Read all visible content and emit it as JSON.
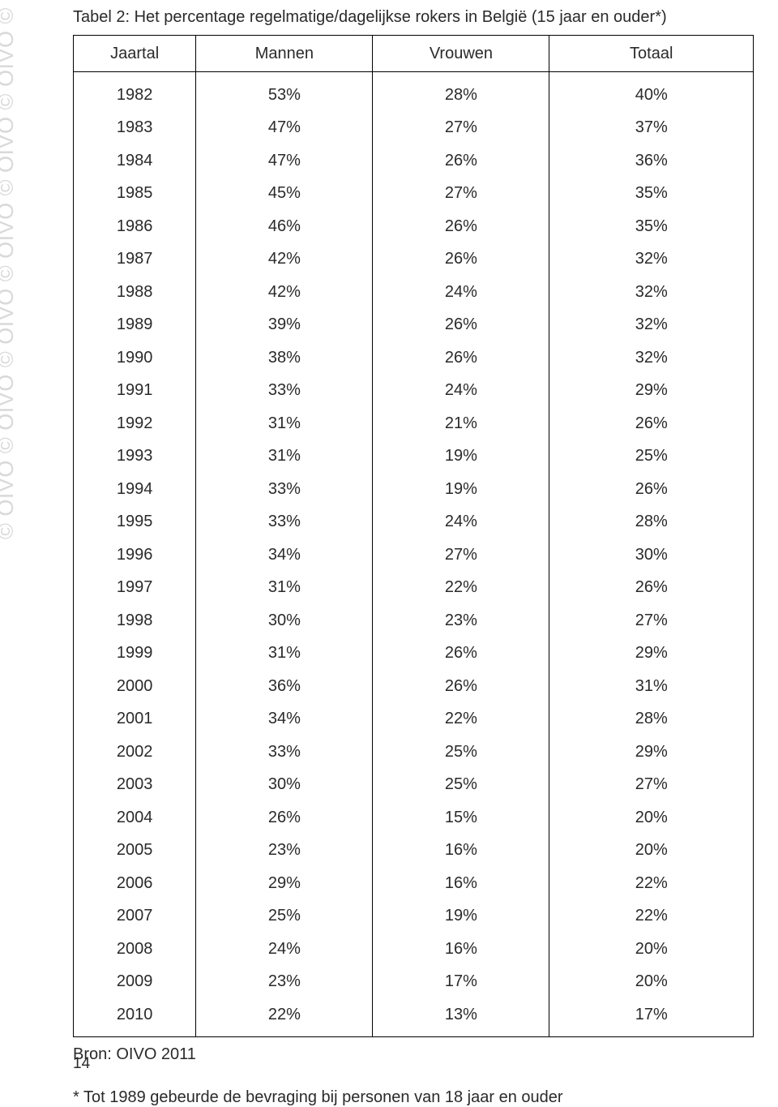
{
  "watermark": {
    "token": "OIVO",
    "separator": "©",
    "repeat": 14,
    "color": "#d9d9d9"
  },
  "table": {
    "type": "table",
    "caption": "Tabel 2: Het percentage regelmatige/dagelijkse rokers in België (15 jaar en ouder*)",
    "columns": [
      "Jaartal",
      "Mannen",
      "Vrouwen",
      "Totaal"
    ],
    "col_widths_pct": [
      18,
      26,
      26,
      30
    ],
    "border_color": "#000000",
    "text_color": "#2a2a2a",
    "font_size_pt": 15,
    "rows": [
      [
        "1982",
        "53%",
        "28%",
        "40%"
      ],
      [
        "1983",
        "47%",
        "27%",
        "37%"
      ],
      [
        "1984",
        "47%",
        "26%",
        "36%"
      ],
      [
        "1985",
        "45%",
        "27%",
        "35%"
      ],
      [
        "1986",
        "46%",
        "26%",
        "35%"
      ],
      [
        "1987",
        "42%",
        "26%",
        "32%"
      ],
      [
        "1988",
        "42%",
        "24%",
        "32%"
      ],
      [
        "1989",
        "39%",
        "26%",
        "32%"
      ],
      [
        "1990",
        "38%",
        "26%",
        "32%"
      ],
      [
        "1991",
        "33%",
        "24%",
        "29%"
      ],
      [
        "1992",
        "31%",
        "21%",
        "26%"
      ],
      [
        "1993",
        "31%",
        "19%",
        "25%"
      ],
      [
        "1994",
        "33%",
        "19%",
        "26%"
      ],
      [
        "1995",
        "33%",
        "24%",
        "28%"
      ],
      [
        "1996",
        "34%",
        "27%",
        "30%"
      ],
      [
        "1997",
        "31%",
        "22%",
        "26%"
      ],
      [
        "1998",
        "30%",
        "23%",
        "27%"
      ],
      [
        "1999",
        "31%",
        "26%",
        "29%"
      ],
      [
        "2000",
        "36%",
        "26%",
        "31%"
      ],
      [
        "2001",
        "34%",
        "22%",
        "28%"
      ],
      [
        "2002",
        "33%",
        "25%",
        "29%"
      ],
      [
        "2003",
        "30%",
        "25%",
        "27%"
      ],
      [
        "2004",
        "26%",
        "15%",
        "20%"
      ],
      [
        "2005",
        "23%",
        "16%",
        "20%"
      ],
      [
        "2006",
        "29%",
        "16%",
        "22%"
      ],
      [
        "2007",
        "25%",
        "19%",
        "22%"
      ],
      [
        "2008",
        "24%",
        "16%",
        "20%"
      ],
      [
        "2009",
        "23%",
        "17%",
        "20%"
      ],
      [
        "2010",
        "22%",
        "13%",
        "17%"
      ]
    ]
  },
  "source": "Bron: OIVO 2011",
  "footnote": "* Tot 1989 gebeurde de bevraging bij personen van 18 jaar en ouder",
  "page_number": "14",
  "background_color": "#ffffff"
}
